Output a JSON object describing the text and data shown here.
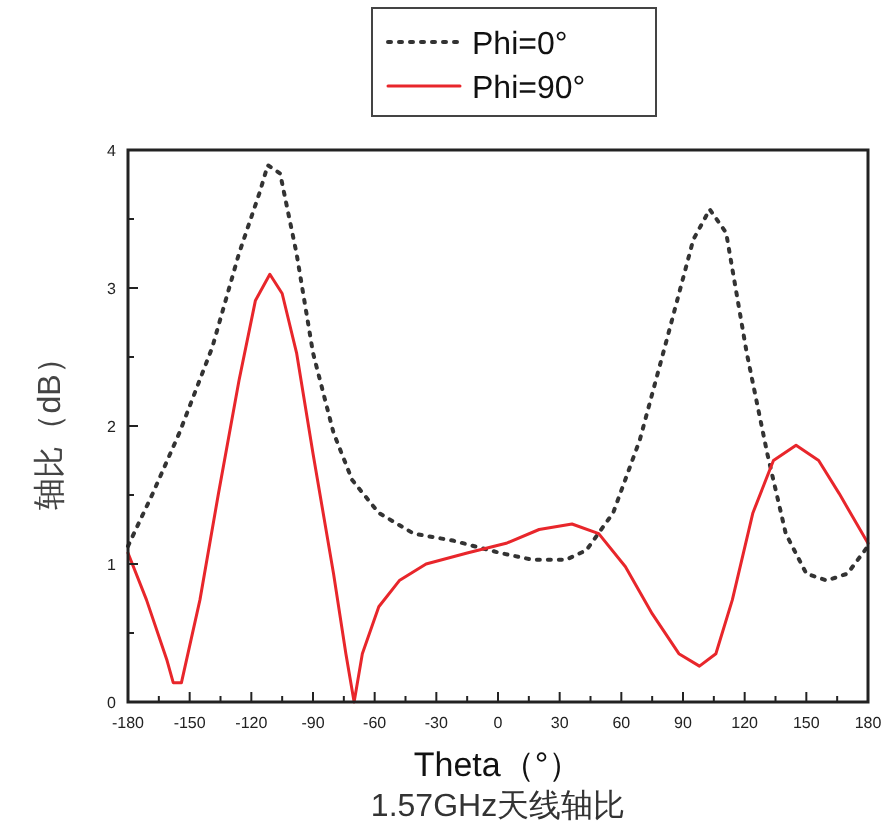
{
  "chart_data": {
    "type": "line",
    "xlabel": "Theta（°）",
    "ylabel": "轴比（dB）",
    "annotations": [
      "1.57GHz天线轴比"
    ],
    "xlim": [
      -180,
      180
    ],
    "ylim": [
      0,
      4
    ],
    "xticks": [
      -180,
      {
        "value": -165,
        "label": null
      },
      -150,
      {
        "value": -135,
        "label": null
      },
      -120,
      {
        "value": -105,
        "label": null
      },
      -90,
      {
        "value": -75,
        "label": null
      },
      -60,
      {
        "value": -45,
        "label": null
      },
      -30,
      {
        "value": -15,
        "label": null
      },
      0,
      {
        "value": 15,
        "label": null
      },
      30,
      {
        "value": 45,
        "label": null
      },
      60,
      {
        "value": 75,
        "label": null
      },
      90,
      {
        "value": 105,
        "label": null
      },
      120,
      {
        "value": 135,
        "label": null
      },
      150,
      {
        "value": 165,
        "label": null
      },
      180
    ],
    "yticks": [
      0,
      {
        "value": 0.5,
        "label": null
      },
      1,
      {
        "value": 1.5,
        "label": null
      },
      2,
      {
        "value": 2.5,
        "label": null
      },
      3,
      {
        "value": 3.5,
        "label": null
      },
      4
    ],
    "grid": false,
    "legend": "top",
    "marker": "none",
    "series": [
      {
        "name": "Phi=0°",
        "color": "#333333",
        "line_style": "dotted",
        "x": [
          -180,
          -168,
          -155,
          -139,
          -126,
          -116,
          -112,
          -106,
          -98,
          -90,
          -80,
          -71,
          -58,
          -41,
          -22,
          1,
          17,
          33,
          43,
          56,
          69,
          82,
          95,
          103,
          111,
          121,
          131,
          140,
          150,
          160,
          170,
          180
        ],
        "values": [
          1.13,
          1.51,
          1.95,
          2.57,
          3.25,
          3.69,
          3.89,
          3.83,
          3.25,
          2.53,
          1.95,
          1.61,
          1.37,
          1.22,
          1.17,
          1.08,
          1.03,
          1.03,
          1.1,
          1.37,
          1.9,
          2.62,
          3.35,
          3.57,
          3.4,
          2.53,
          1.8,
          1.22,
          0.93,
          0.88,
          0.93,
          1.13
        ]
      },
      {
        "name": "Phi=90°",
        "color": "#e8262b",
        "line_style": "solid",
        "x": [
          -180,
          -171,
          -161,
          -158,
          -154,
          -145,
          -136,
          -126,
          -118,
          -111,
          -105,
          -98,
          -90,
          -80,
          -74,
          -70,
          -66,
          -58,
          -48,
          -35,
          -15,
          4,
          20,
          36,
          49,
          62,
          75,
          88,
          98,
          106,
          114,
          124,
          134,
          145,
          156,
          166,
          180
        ],
        "values": [
          1.08,
          0.74,
          0.3,
          0.14,
          0.14,
          0.74,
          1.51,
          2.33,
          2.91,
          3.1,
          2.96,
          2.53,
          1.8,
          0.93,
          0.35,
          0,
          0.35,
          0.69,
          0.88,
          1.0,
          1.08,
          1.15,
          1.25,
          1.29,
          1.22,
          0.98,
          0.64,
          0.35,
          0.26,
          0.35,
          0.74,
          1.37,
          1.75,
          1.86,
          1.75,
          1.51,
          1.15
        ]
      }
    ]
  }
}
